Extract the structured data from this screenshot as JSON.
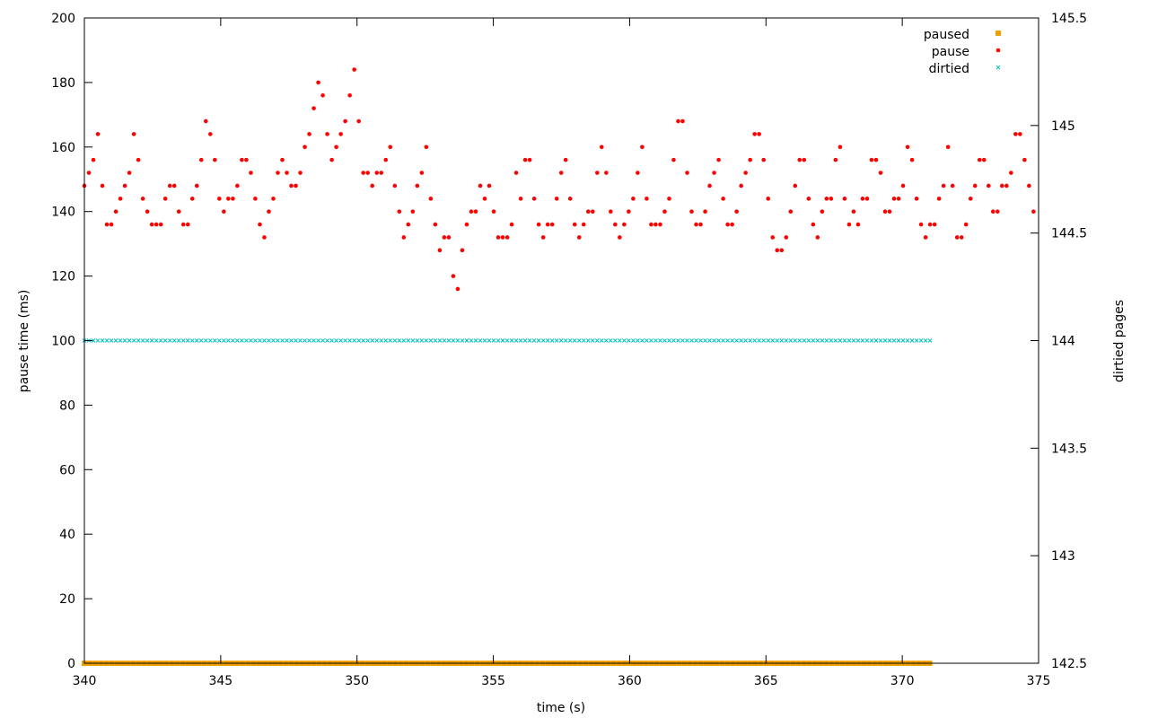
{
  "chart_data": {
    "type": "scatter",
    "xlabel": "time (s)",
    "ylabel": "pause time (ms)",
    "y2label": "dirtied pages",
    "xlim": [
      340,
      375
    ],
    "ylim": [
      0,
      200
    ],
    "y2lim": [
      142.5,
      145.5
    ],
    "x_ticks": [
      "340",
      "345",
      "350",
      "355",
      "360",
      "365",
      "370",
      "375"
    ],
    "y_ticks": [
      "0",
      "20",
      "40",
      "60",
      "80",
      "100",
      "120",
      "140",
      "160",
      "180",
      "200"
    ],
    "y2_ticks": [
      "142.5",
      "143",
      "143.5",
      "144",
      "144.5",
      "145",
      "145.5"
    ],
    "legend_position": "top-right",
    "grid": false,
    "series": [
      {
        "name": "paused",
        "marker": "square",
        "color": "#f0a000",
        "axis": "y1",
        "x_range": [
          340.0,
          371.1
        ],
        "step": 0.2,
        "constant_value": 0
      },
      {
        "name": "pause",
        "marker": "circle",
        "color": "#ff0000",
        "axis": "y1",
        "x_start": 340.0,
        "step": 0.165,
        "values": [
          148,
          152,
          156,
          164,
          148,
          136,
          136,
          140,
          144,
          148,
          152,
          164,
          156,
          144,
          140,
          136,
          136,
          136,
          144,
          148,
          148,
          140,
          136,
          136,
          144,
          148,
          156,
          168,
          164,
          156,
          144,
          140,
          144,
          144,
          148,
          156,
          156,
          152,
          144,
          136,
          132,
          140,
          144,
          152,
          156,
          152,
          148,
          148,
          152,
          160,
          164,
          172,
          180,
          176,
          164,
          156,
          160,
          164,
          168,
          176,
          184,
          168,
          152,
          152,
          148,
          152,
          152,
          156,
          160,
          148,
          140,
          132,
          136,
          140,
          148,
          152,
          160,
          144,
          136,
          128,
          132,
          132,
          120,
          116,
          128,
          136,
          140,
          140,
          148,
          144,
          148,
          140,
          132,
          132,
          132,
          136,
          152,
          144,
          156,
          156,
          144,
          136,
          132,
          136,
          136,
          144,
          152,
          156,
          144,
          136,
          132,
          136,
          140,
          140,
          152,
          160,
          152,
          140,
          136,
          132,
          136,
          140,
          144,
          152,
          160,
          144,
          136,
          136,
          136,
          140,
          144,
          156,
          168,
          168,
          152,
          140,
          136,
          136,
          140,
          148,
          152,
          156,
          144,
          136,
          136,
          140,
          148,
          152,
          156,
          164,
          164,
          156,
          144,
          132,
          128,
          128,
          132,
          140,
          148,
          156,
          156,
          144,
          136,
          132,
          140,
          144,
          144,
          156,
          160,
          144,
          136,
          140,
          136,
          144,
          144,
          156,
          156,
          152,
          140,
          140,
          144,
          144,
          148,
          160,
          156,
          144,
          136,
          132,
          136,
          136,
          144,
          148,
          160,
          148,
          132,
          132,
          136,
          144,
          148,
          156,
          156,
          148,
          140,
          140,
          148,
          148,
          152,
          164,
          164,
          156,
          148,
          140
        ]
      },
      {
        "name": "dirtied",
        "marker": "cross",
        "color": "#00c0c0",
        "axis": "y2",
        "x_range": [
          340.0,
          371.1
        ],
        "step": 0.165,
        "constant_value": 144
      }
    ]
  }
}
